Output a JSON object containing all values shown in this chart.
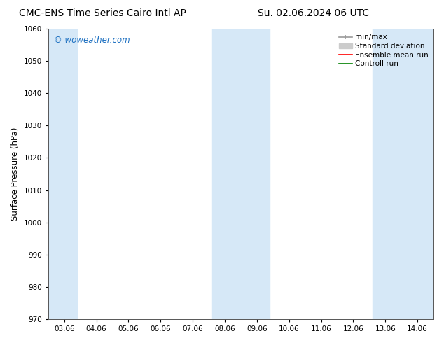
{
  "title_left": "CMC-ENS Time Series Cairo Intl AP",
  "title_right": "Su. 02.06.2024 06 UTC",
  "ylabel": "Surface Pressure (hPa)",
  "ylim": [
    970,
    1060
  ],
  "yticks": [
    970,
    980,
    990,
    1000,
    1010,
    1020,
    1030,
    1040,
    1050,
    1060
  ],
  "xtick_labels": [
    "03.06",
    "04.06",
    "05.06",
    "06.06",
    "07.06",
    "08.06",
    "09.06",
    "10.06",
    "11.06",
    "12.06",
    "13.06",
    "14.06"
  ],
  "shade_color": "#d6e8f7",
  "shaded_ranges": [
    [
      -0.5,
      0.4
    ],
    [
      4.6,
      6.4
    ],
    [
      9.6,
      11.5
    ]
  ],
  "watermark": "© woweather.com",
  "watermark_color": "#1a6ec0",
  "legend_entries": [
    {
      "label": "min/max",
      "color": "#aaaaaa"
    },
    {
      "label": "Standard deviation",
      "color": "#cccccc"
    },
    {
      "label": "Ensemble mean run",
      "color": "red"
    },
    {
      "label": "Controll run",
      "color": "green"
    }
  ],
  "bg_color": "#ffffff",
  "spine_color": "#555555",
  "tick_fontsize": 7.5,
  "ylabel_fontsize": 8.5,
  "title_fontsize": 10,
  "legend_fontsize": 7.5
}
